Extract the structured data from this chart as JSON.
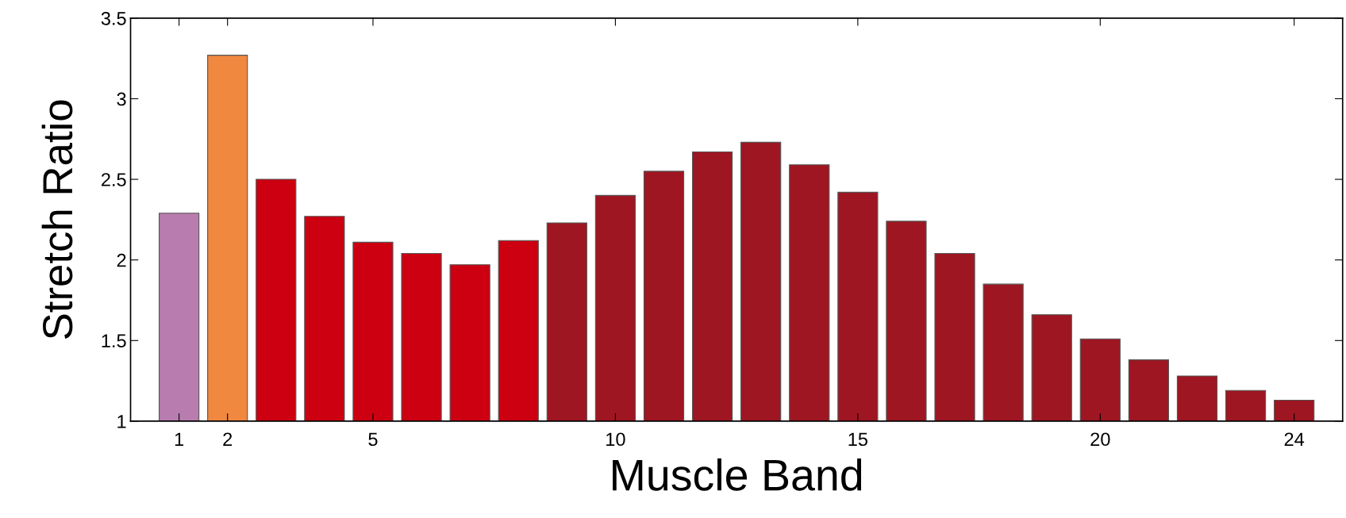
{
  "chart_data": {
    "type": "bar",
    "xlabel": "Muscle Band",
    "ylabel": "Stretch Ratio",
    "x": [
      1,
      2,
      3,
      4,
      5,
      6,
      7,
      8,
      9,
      10,
      11,
      12,
      13,
      14,
      15,
      16,
      17,
      18,
      19,
      20,
      21,
      22,
      23,
      24
    ],
    "values": [
      2.29,
      3.27,
      2.5,
      2.27,
      2.11,
      2.04,
      1.97,
      2.12,
      2.23,
      2.4,
      2.55,
      2.67,
      2.73,
      2.59,
      2.42,
      2.24,
      2.04,
      1.85,
      1.66,
      1.51,
      1.38,
      1.28,
      1.19,
      1.13
    ],
    "colors": [
      "#b87cae",
      "#f08840",
      "#cc0010",
      "#cc0010",
      "#cc0010",
      "#cc0010",
      "#cc0010",
      "#cc0010",
      "#9e1621",
      "#9e1621",
      "#9e1621",
      "#9e1621",
      "#9e1621",
      "#9e1621",
      "#9e1621",
      "#9e1621",
      "#9e1621",
      "#9e1621",
      "#9e1621",
      "#9e1621",
      "#9e1621",
      "#9e1621",
      "#9e1621",
      "#9e1621"
    ],
    "xlim": [
      0,
      25
    ],
    "xticks": [
      1,
      2,
      5,
      10,
      15,
      20,
      24
    ],
    "ylim": [
      1,
      3.5
    ],
    "yticks": [
      1,
      1.5,
      2,
      2.5,
      3,
      3.5
    ],
    "grid": false,
    "legend": false
  }
}
